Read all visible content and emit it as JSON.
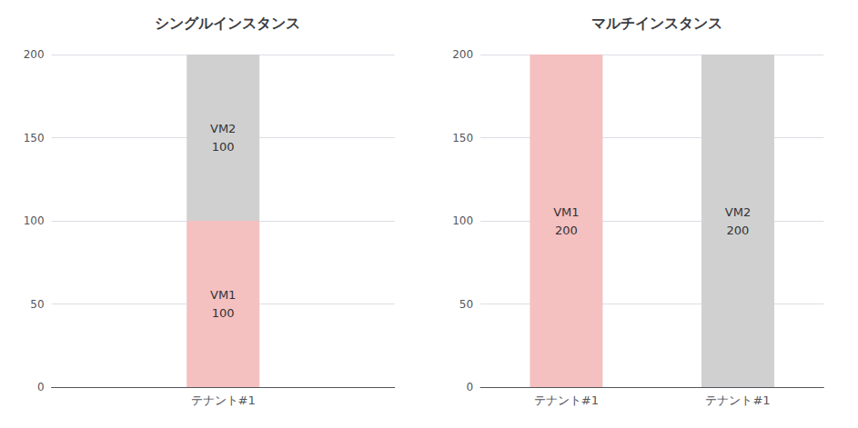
{
  "chart_data": [
    {
      "type": "bar",
      "title": "シングルインスタンス",
      "categories": [
        "テナント#1"
      ],
      "series": [
        {
          "name": "VM1",
          "color": "#f5c0c0",
          "values": [
            100
          ]
        },
        {
          "name": "VM2",
          "color": "#d0d0d0",
          "values": [
            100
          ]
        }
      ],
      "stacked": true,
      "data_labels": true,
      "ylim": [
        0,
        200
      ],
      "yticks": [
        0,
        50,
        100,
        150,
        200
      ],
      "grid": true
    },
    {
      "type": "bar",
      "title": "マルチインスタンス",
      "categories": [
        "テナント#1",
        "テナント#1"
      ],
      "series": [
        {
          "name": "VM1",
          "color": "#f5c0c0",
          "values": [
            200,
            null
          ]
        },
        {
          "name": "VM2",
          "color": "#d0d0d0",
          "values": [
            null,
            200
          ]
        }
      ],
      "stacked": true,
      "data_labels": true,
      "ylim": [
        0,
        200
      ],
      "yticks": [
        0,
        50,
        100,
        150,
        200
      ],
      "grid": true
    }
  ]
}
